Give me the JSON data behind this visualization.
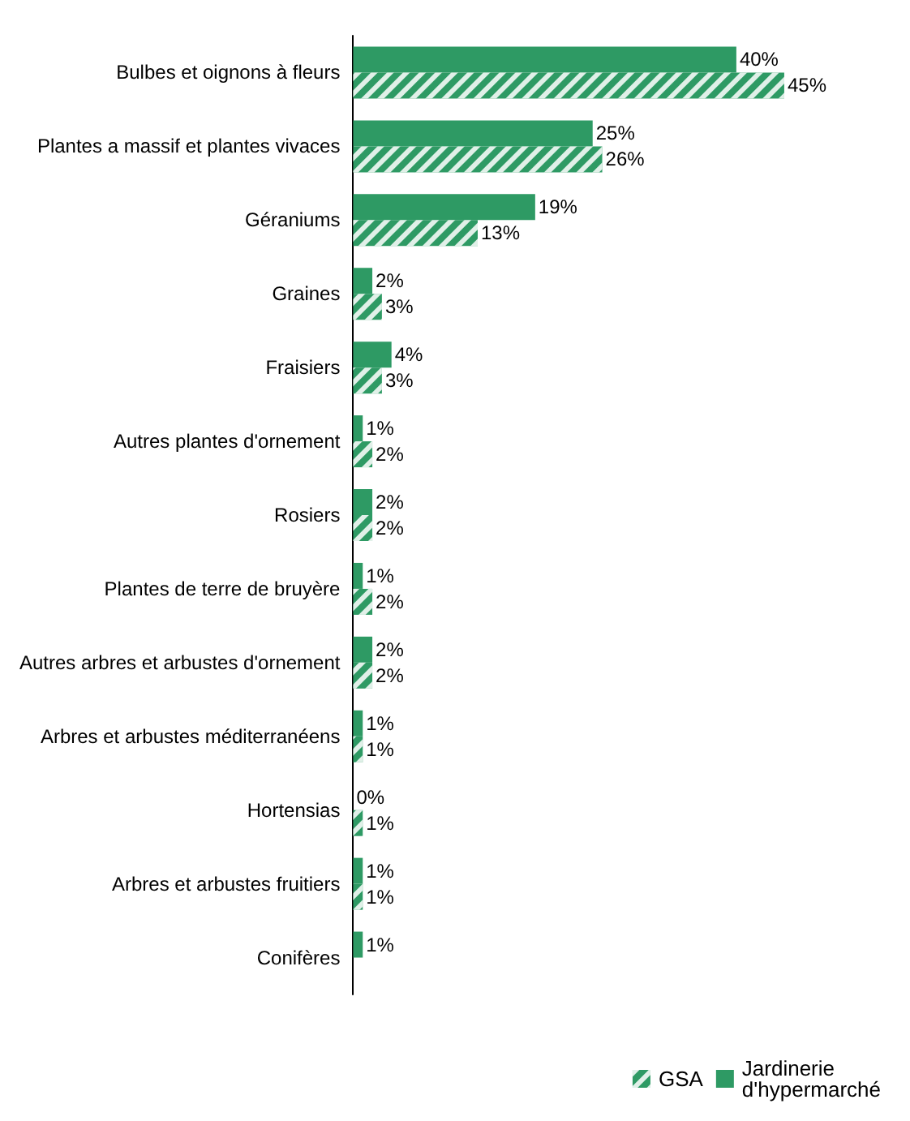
{
  "chart_data": {
    "type": "bar",
    "orientation": "horizontal",
    "legend": "bottom right",
    "categories": [
      "Bulbes et oignons à fleurs",
      "Plantes a massif et plantes vivaces",
      "Géraniums",
      "Graines",
      "Fraisiers",
      "Autres plantes d'ornement",
      "Rosiers",
      "Plantes de terre de bruyère",
      "Autres arbres et arbustes d'ornement",
      "Arbres et arbustes méditerranéens",
      "Hortensias",
      "Arbres et arbustes fruitiers",
      "Conifères"
    ],
    "series": [
      {
        "name": "Jardinerie d'hypermarché",
        "color": "#2e9a64",
        "values": [
          40,
          25,
          19,
          2,
          4,
          1,
          2,
          1,
          2,
          1,
          0,
          1,
          1
        ],
        "value_labels": [
          "40%",
          "25%",
          "19%",
          "2%",
          "4%",
          "1%",
          "2%",
          "1%",
          "2%",
          "1%",
          "0%",
          "1%",
          "1%"
        ]
      },
      {
        "name": "GSA",
        "color": "#2e9a64",
        "values": [
          45,
          26,
          13,
          3,
          3,
          2,
          2,
          2,
          2,
          1,
          1,
          1,
          null
        ],
        "value_labels": [
          "45%",
          "26%",
          "13%",
          "3%",
          "3%",
          "2%",
          "2%",
          "2%",
          "2%",
          "1%",
          "1%",
          "1%",
          null
        ]
      }
    ]
  }
}
